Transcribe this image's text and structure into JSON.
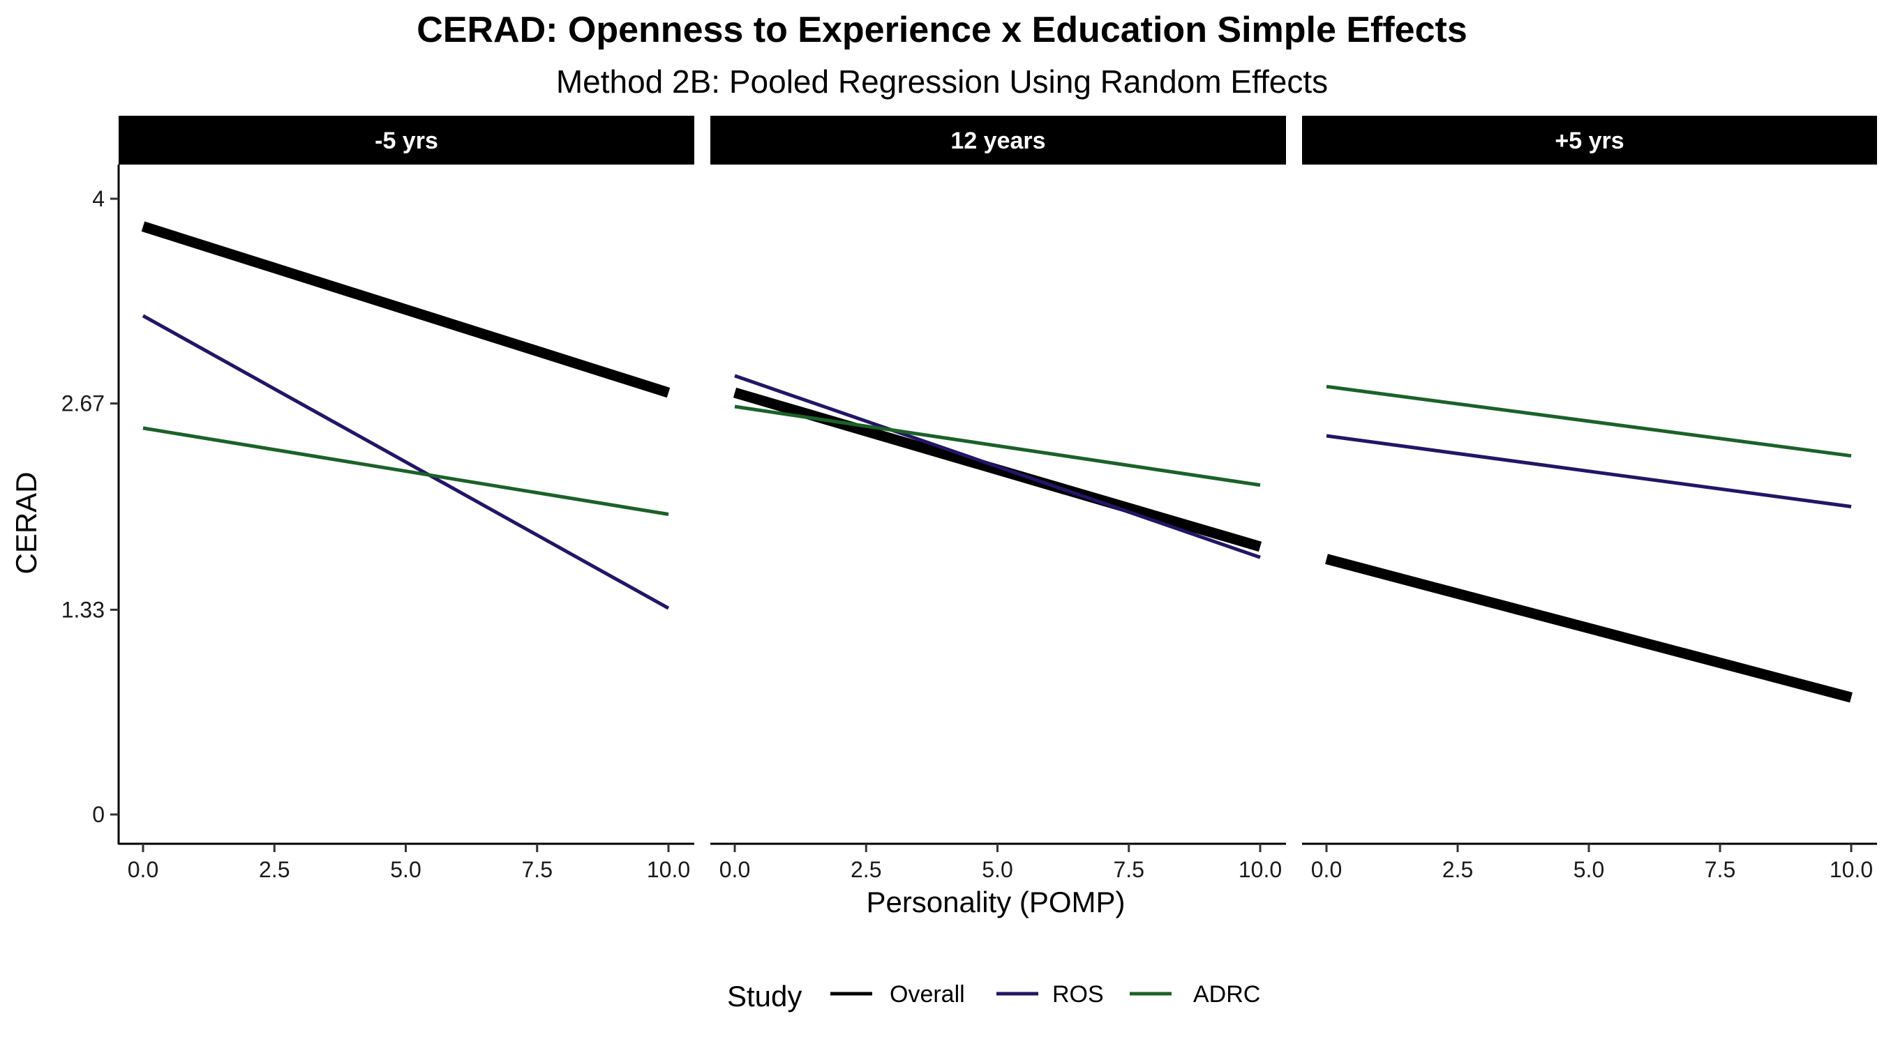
{
  "chart_data": {
    "type": "line",
    "title": "CERAD: Openness to Experience x Education Simple Effects",
    "subtitle": "Method 2B: Pooled Regression Using Random Effects",
    "xlabel": "Personality (POMP)",
    "ylabel": "CERAD",
    "xlim": [
      0,
      10
    ],
    "ylim": [
      0,
      4
    ],
    "x_ticks": [
      "0.0",
      "2.5",
      "5.0",
      "7.5",
      "10.0"
    ],
    "y_ticks": [
      "0",
      "1.33",
      "2.67",
      "4"
    ],
    "grid": false,
    "legend": {
      "title": "Study",
      "position": "bottom",
      "entries": [
        "Overall",
        "ROS",
        "ADRC"
      ]
    },
    "colors": {
      "Overall": "#000000",
      "ROS": "#231567",
      "ADRC": "#1b6228"
    },
    "panels": [
      {
        "label": "-5 yrs",
        "series": [
          {
            "name": "Overall",
            "x": [
              0,
              10
            ],
            "y": [
              3.82,
              2.74
            ]
          },
          {
            "name": "ROS",
            "x": [
              0,
              10
            ],
            "y": [
              3.24,
              1.34
            ]
          },
          {
            "name": "ADRC",
            "x": [
              0,
              10
            ],
            "y": [
              2.51,
              1.95
            ]
          }
        ]
      },
      {
        "label": "12 years",
        "series": [
          {
            "name": "Overall",
            "x": [
              0,
              10
            ],
            "y": [
              2.74,
              1.74
            ]
          },
          {
            "name": "ROS",
            "x": [
              0,
              10
            ],
            "y": [
              2.85,
              1.67
            ]
          },
          {
            "name": "ADRC",
            "x": [
              0,
              10
            ],
            "y": [
              2.65,
              2.14
            ]
          }
        ]
      },
      {
        "label": "+5 yrs",
        "series": [
          {
            "name": "Overall",
            "x": [
              0,
              10
            ],
            "y": [
              1.66,
              0.76
            ]
          },
          {
            "name": "ROS",
            "x": [
              0,
              10
            ],
            "y": [
              2.46,
              2.0
            ]
          },
          {
            "name": "ADRC",
            "x": [
              0,
              10
            ],
            "y": [
              2.78,
              2.33
            ]
          }
        ]
      }
    ]
  }
}
